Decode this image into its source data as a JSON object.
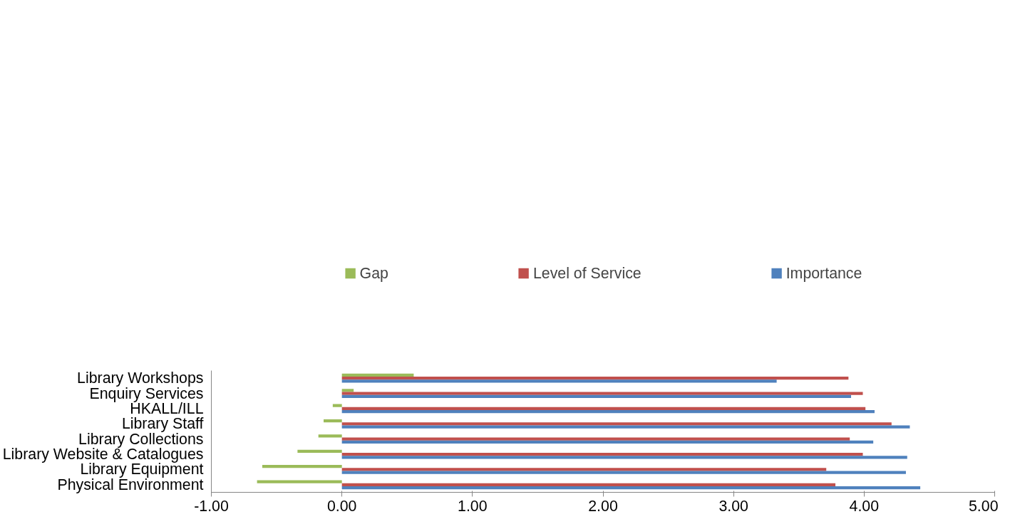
{
  "chart_data": {
    "type": "bar",
    "orientation": "horizontal",
    "categories": [
      "Library Workshops",
      "Enquiry Services",
      "HKALL/ILL",
      "Library Staff",
      "Library Collections",
      "Library Website & Catalogues",
      "Library Equipment",
      "Physical Environment"
    ],
    "series": [
      {
        "name": "Gap",
        "color": "#9bbb59",
        "values": [
          0.55,
          0.09,
          -0.07,
          -0.14,
          -0.18,
          -0.34,
          -0.61,
          -0.65
        ]
      },
      {
        "name": "Level of Service",
        "color": "#c0504d",
        "values": [
          3.88,
          3.99,
          4.01,
          4.21,
          3.89,
          3.99,
          3.71,
          3.78
        ]
      },
      {
        "name": "Importance",
        "color": "#4f81bd",
        "values": [
          3.33,
          3.9,
          4.08,
          4.35,
          4.07,
          4.33,
          4.32,
          4.43
        ]
      }
    ],
    "xlim": [
      -1,
      5
    ],
    "xticks": [
      {
        "value": -1,
        "label": "-1.00"
      },
      {
        "value": 0,
        "label": "0.00"
      },
      {
        "value": 1,
        "label": "1.00"
      },
      {
        "value": 2,
        "label": "2.00"
      },
      {
        "value": 3,
        "label": "3.00"
      },
      {
        "value": 4,
        "label": "4.00"
      },
      {
        "value": 5,
        "label": "5.00"
      }
    ],
    "grid": false,
    "legend": "top"
  }
}
